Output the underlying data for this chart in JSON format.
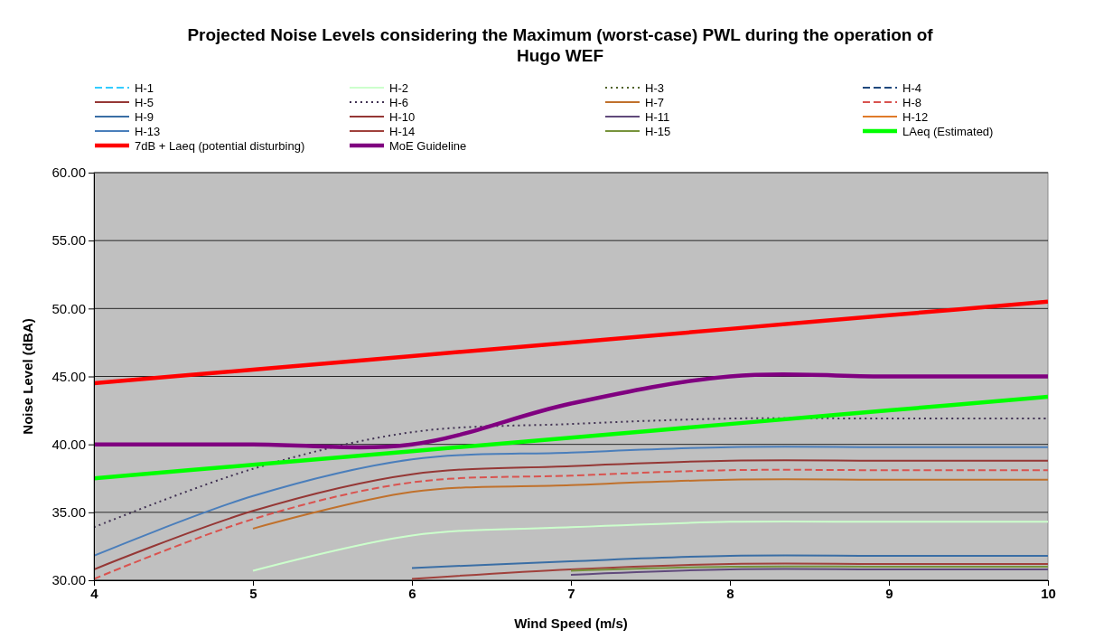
{
  "chart_data": {
    "type": "line",
    "title": "Projected Noise Levels considering the Maximum (worst-case) PWL during the operation of Hugo WEF",
    "xlabel": "Wind Speed (m/s)",
    "ylabel": "Noise Level (dBA)",
    "x": [
      4,
      5,
      6,
      7,
      8,
      9,
      10
    ],
    "xlim": [
      4,
      10
    ],
    "xticks": [
      4,
      5,
      6,
      7,
      8,
      9,
      10
    ],
    "ylim": [
      30,
      60
    ],
    "yticks": [
      {
        "value": 30,
        "label": "30.00"
      },
      {
        "value": 35,
        "label": "35.00"
      },
      {
        "value": 40,
        "label": "40.00"
      },
      {
        "value": 45,
        "label": "45.00"
      },
      {
        "value": 50,
        "label": "50.00"
      },
      {
        "value": 55,
        "label": "55.00"
      },
      {
        "value": 60,
        "label": "60.00"
      }
    ],
    "grid": "y",
    "legend": "top",
    "marker": "none",
    "series": [
      {
        "name": "H-1",
        "color": "#33ccff",
        "line_style": "dashed",
        "values": [
          null,
          null,
          null,
          null,
          null,
          null,
          null
        ]
      },
      {
        "name": "H-2",
        "color": "#ccffcc",
        "line_style": "solid",
        "values": [
          null,
          30.7,
          33.3,
          33.9,
          34.3,
          34.3,
          34.3
        ]
      },
      {
        "name": "H-3",
        "color": "#4f6228",
        "line_style": "dotted",
        "values": [
          null,
          null,
          null,
          null,
          null,
          null,
          null
        ]
      },
      {
        "name": "H-4",
        "color": "#1f497d",
        "line_style": "dashed",
        "values": [
          null,
          null,
          null,
          null,
          null,
          null,
          null
        ]
      },
      {
        "name": "H-5",
        "color": "#953735",
        "line_style": "solid",
        "values": [
          30.8,
          35.1,
          37.8,
          38.4,
          38.8,
          38.8,
          38.8
        ]
      },
      {
        "name": "H-6",
        "color": "#403152",
        "line_style": "dotted",
        "values": [
          33.9,
          38.2,
          40.9,
          41.5,
          41.9,
          41.9,
          41.9
        ]
      },
      {
        "name": "H-7",
        "color": "#c0712c",
        "line_style": "solid",
        "values": [
          null,
          33.8,
          36.5,
          37.0,
          37.4,
          37.4,
          37.4
        ]
      },
      {
        "name": "H-8",
        "color": "#d9534f",
        "line_style": "dashed",
        "values": [
          30.1,
          34.5,
          37.2,
          37.7,
          38.1,
          38.1,
          38.1
        ]
      },
      {
        "name": "H-9",
        "color": "#3a6ea5",
        "line_style": "solid",
        "values": [
          null,
          null,
          30.9,
          31.4,
          31.8,
          31.8,
          31.8
        ]
      },
      {
        "name": "H-10",
        "color": "#953735",
        "line_style": "solid",
        "values": [
          null,
          null,
          null,
          null,
          null,
          null,
          null
        ]
      },
      {
        "name": "H-11",
        "color": "#604a7b",
        "line_style": "solid",
        "values": [
          null,
          null,
          null,
          30.4,
          30.8,
          30.8,
          30.8
        ]
      },
      {
        "name": "H-12",
        "color": "#e07b2a",
        "line_style": "solid",
        "values": [
          null,
          null,
          null,
          null,
          null,
          null,
          null
        ]
      },
      {
        "name": "H-13",
        "color": "#4a7ebb",
        "line_style": "solid",
        "values": [
          31.8,
          36.2,
          38.9,
          39.4,
          39.8,
          39.8,
          39.8
        ]
      },
      {
        "name": "H-14",
        "color": "#a0413c",
        "line_style": "solid",
        "values": [
          null,
          null,
          30.1,
          30.8,
          31.2,
          31.2,
          31.2
        ]
      },
      {
        "name": "H-15",
        "color": "#77933c",
        "line_style": "solid",
        "values": [
          null,
          null,
          null,
          30.7,
          31.0,
          31.0,
          31.0
        ]
      },
      {
        "name": "LAeq (Estimated)",
        "color": "#00ff00",
        "line_style": "solid",
        "values": [
          37.5,
          38.5,
          39.5,
          40.5,
          41.5,
          42.5,
          43.5
        ]
      },
      {
        "name": "7dB + Laeq (potential disturbing)",
        "color": "#ff0000",
        "line_style": "solid",
        "values": [
          44.5,
          45.5,
          46.5,
          47.5,
          48.5,
          49.5,
          50.5
        ]
      },
      {
        "name": "MoE Guideline",
        "color": "#800080",
        "line_style": "solid",
        "values": [
          40,
          40,
          40,
          43,
          45,
          45,
          45
        ]
      }
    ]
  }
}
